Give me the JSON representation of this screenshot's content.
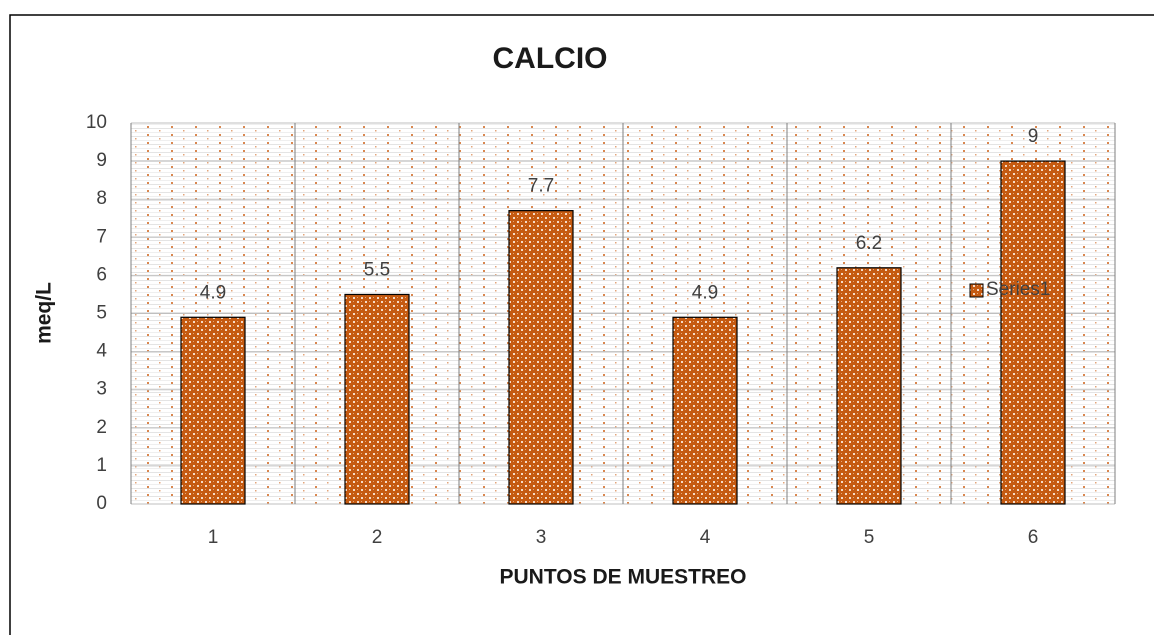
{
  "chart_data": {
    "type": "bar",
    "title": "CALCIO",
    "x_label": "PUNTOS DE MUESTREO",
    "y_label": "meq/L",
    "categories": [
      "1",
      "2",
      "3",
      "4",
      "5",
      "6"
    ],
    "series": [
      {
        "name": "Series1",
        "color": "#c55a11",
        "values": [
          4.9,
          5.5,
          7.7,
          4.9,
          6.2,
          9
        ]
      }
    ],
    "ylim": [
      0,
      10
    ],
    "yticks": [
      0,
      1,
      2,
      3,
      4,
      5,
      6,
      7,
      8,
      9,
      10
    ],
    "grid": true,
    "legend": "right"
  }
}
